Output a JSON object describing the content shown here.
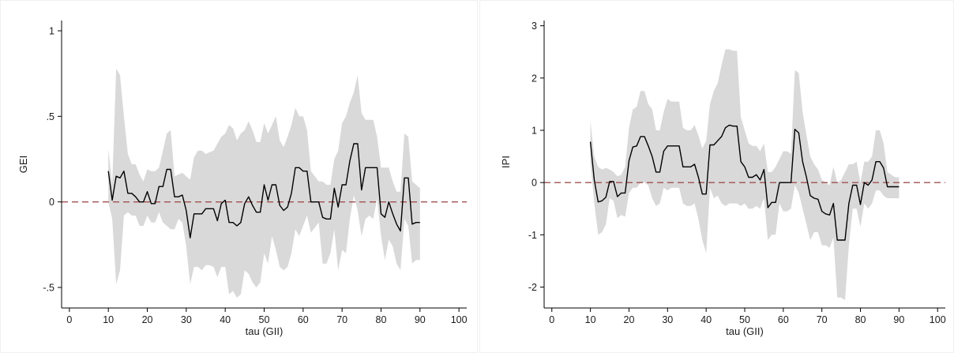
{
  "chart_data": [
    {
      "type": "line",
      "xlabel": "tau (GII)",
      "ylabel": "GEI",
      "xlim": [
        -2,
        102
      ],
      "ylim": [
        -0.62,
        1.06
      ],
      "xticks": [
        0,
        10,
        20,
        30,
        40,
        50,
        60,
        70,
        80,
        90,
        100
      ],
      "xtick_labels": [
        "0",
        "10",
        "20",
        "30",
        "40",
        "50",
        "60",
        "70",
        "80",
        "90",
        "100"
      ],
      "yticks": [
        -0.5,
        0,
        0.5,
        1
      ],
      "ytick_labels": [
        "-.5",
        "0",
        ".5",
        "1"
      ],
      "reference_line": {
        "y": 0,
        "style": "dashed",
        "color": "#a05050"
      },
      "band_color": "#d9d9d9",
      "line_color": "#000000",
      "grid": false,
      "series": [
        {
          "role": "estimate",
          "x": [
            10,
            11,
            12,
            13,
            14,
            15,
            16,
            17,
            18,
            19,
            20,
            21,
            22,
            23,
            24,
            25,
            26,
            27,
            28,
            29,
            30,
            31,
            32,
            33,
            34,
            35,
            36,
            37,
            38,
            39,
            40,
            41,
            42,
            43,
            44,
            45,
            46,
            47,
            48,
            49,
            50,
            51,
            52,
            53,
            54,
            55,
            56,
            57,
            58,
            59,
            60,
            61,
            62,
            63,
            64,
            65,
            66,
            67,
            68,
            69,
            70,
            71,
            72,
            73,
            74,
            75,
            76,
            77,
            78,
            79,
            80,
            81,
            82,
            83,
            84,
            85,
            86,
            87,
            88,
            89,
            90
          ],
          "y": [
            0.18,
            0.01,
            0.15,
            0.14,
            0.18,
            0.05,
            0.05,
            0.03,
            0.0,
            0.0,
            0.06,
            -0.01,
            -0.01,
            0.09,
            0.09,
            0.19,
            0.19,
            0.03,
            0.03,
            0.04,
            -0.05,
            -0.21,
            -0.07,
            -0.07,
            -0.07,
            -0.04,
            -0.04,
            -0.04,
            -0.11,
            -0.01,
            0.01,
            -0.12,
            -0.12,
            -0.14,
            -0.12,
            -0.01,
            0.03,
            -0.02,
            -0.06,
            -0.06,
            0.1,
            0.01,
            0.1,
            0.1,
            -0.02,
            -0.05,
            -0.03,
            0.05,
            0.2,
            0.2,
            0.18,
            0.18,
            0.0,
            0.0,
            0.0,
            -0.09,
            -0.1,
            -0.1,
            0.08,
            -0.03,
            0.1,
            0.1,
            0.24,
            0.34,
            0.34,
            0.07,
            0.2,
            0.2,
            0.2,
            0.2,
            -0.07,
            -0.09,
            0.0,
            -0.07,
            -0.13,
            -0.17,
            0.14,
            0.14,
            -0.13,
            -0.12,
            -0.12
          ]
        },
        {
          "role": "ci_upper",
          "x": [
            10,
            11,
            12,
            13,
            14,
            15,
            16,
            17,
            18,
            19,
            20,
            21,
            22,
            23,
            24,
            25,
            26,
            27,
            28,
            29,
            30,
            31,
            32,
            33,
            34,
            35,
            36,
            37,
            38,
            39,
            40,
            41,
            42,
            43,
            44,
            45,
            46,
            47,
            48,
            49,
            50,
            51,
            52,
            53,
            54,
            55,
            56,
            57,
            58,
            59,
            60,
            61,
            62,
            63,
            64,
            65,
            66,
            67,
            68,
            69,
            70,
            71,
            72,
            73,
            74,
            75,
            76,
            77,
            78,
            79,
            80,
            81,
            82,
            83,
            84,
            85,
            86,
            87,
            88,
            89,
            90
          ],
          "y": [
            0.31,
            0.1,
            0.78,
            0.74,
            0.5,
            0.28,
            0.22,
            0.22,
            0.16,
            0.12,
            0.19,
            0.18,
            0.18,
            0.2,
            0.3,
            0.4,
            0.42,
            0.15,
            0.16,
            0.17,
            0.15,
            0.13,
            0.26,
            0.3,
            0.3,
            0.28,
            0.29,
            0.3,
            0.34,
            0.38,
            0.4,
            0.45,
            0.43,
            0.36,
            0.4,
            0.42,
            0.47,
            0.42,
            0.35,
            0.35,
            0.46,
            0.4,
            0.45,
            0.5,
            0.36,
            0.32,
            0.38,
            0.45,
            0.55,
            0.5,
            0.5,
            0.42,
            0.18,
            0.15,
            0.12,
            0.12,
            0.1,
            0.1,
            0.25,
            0.3,
            0.46,
            0.5,
            0.58,
            0.64,
            0.74,
            0.52,
            0.48,
            0.48,
            0.48,
            0.38,
            0.2,
            0.2,
            0.2,
            0.12,
            0.06,
            0.06,
            0.4,
            0.38,
            0.12,
            0.1,
            0.08
          ]
        },
        {
          "role": "ci_lower",
          "x": [
            10,
            11,
            12,
            13,
            14,
            15,
            16,
            17,
            18,
            19,
            20,
            21,
            22,
            23,
            24,
            25,
            26,
            27,
            28,
            29,
            30,
            31,
            32,
            33,
            34,
            35,
            36,
            37,
            38,
            39,
            40,
            41,
            42,
            43,
            44,
            45,
            46,
            47,
            48,
            49,
            50,
            51,
            52,
            53,
            54,
            55,
            56,
            57,
            58,
            59,
            60,
            61,
            62,
            63,
            64,
            65,
            66,
            67,
            68,
            69,
            70,
            71,
            72,
            73,
            74,
            75,
            76,
            77,
            78,
            79,
            80,
            81,
            82,
            83,
            84,
            85,
            86,
            87,
            88,
            89,
            90
          ],
          "y": [
            0.0,
            -0.1,
            -0.48,
            -0.4,
            -0.08,
            -0.06,
            -0.08,
            -0.08,
            -0.14,
            -0.14,
            -0.08,
            -0.12,
            -0.12,
            -0.06,
            -0.12,
            -0.14,
            -0.16,
            -0.16,
            -0.1,
            -0.12,
            -0.26,
            -0.48,
            -0.38,
            -0.38,
            -0.4,
            -0.37,
            -0.37,
            -0.38,
            -0.44,
            -0.38,
            -0.38,
            -0.54,
            -0.52,
            -0.56,
            -0.54,
            -0.4,
            -0.42,
            -0.47,
            -0.5,
            -0.47,
            -0.3,
            -0.36,
            -0.2,
            -0.28,
            -0.38,
            -0.4,
            -0.38,
            -0.3,
            -0.16,
            -0.2,
            -0.14,
            -0.08,
            -0.18,
            -0.15,
            -0.12,
            -0.36,
            -0.36,
            -0.3,
            -0.16,
            -0.4,
            -0.28,
            -0.3,
            -0.1,
            0.04,
            -0.05,
            -0.2,
            -0.1,
            -0.08,
            -0.1,
            0.02,
            -0.2,
            -0.34,
            -0.22,
            -0.26,
            -0.36,
            -0.4,
            -0.1,
            -0.14,
            -0.36,
            -0.34,
            -0.34
          ]
        }
      ]
    },
    {
      "type": "line",
      "xlabel": "tau (GII)",
      "ylabel": "IPI",
      "xlim": [
        -2,
        102
      ],
      "ylim": [
        -2.4,
        3.1
      ],
      "xticks": [
        0,
        10,
        20,
        30,
        40,
        50,
        60,
        70,
        80,
        90,
        100
      ],
      "xtick_labels": [
        "0",
        "10",
        "20",
        "30",
        "40",
        "50",
        "60",
        "70",
        "80",
        "90",
        "100"
      ],
      "yticks": [
        -2,
        -1,
        0,
        1,
        2,
        3
      ],
      "ytick_labels": [
        "-2",
        "-1",
        "0",
        "1",
        "2",
        "3"
      ],
      "reference_line": {
        "y": 0,
        "style": "dashed",
        "color": "#a05050"
      },
      "band_color": "#d9d9d9",
      "line_color": "#000000",
      "grid": false,
      "series": [
        {
          "role": "estimate",
          "x": [
            10,
            11,
            12,
            13,
            14,
            15,
            16,
            17,
            18,
            19,
            20,
            21,
            22,
            23,
            24,
            25,
            26,
            27,
            28,
            29,
            30,
            31,
            32,
            33,
            34,
            35,
            36,
            37,
            38,
            39,
            40,
            41,
            42,
            43,
            44,
            45,
            46,
            47,
            48,
            49,
            50,
            51,
            52,
            53,
            54,
            55,
            56,
            57,
            58,
            59,
            60,
            61,
            62,
            63,
            64,
            65,
            66,
            67,
            68,
            69,
            70,
            71,
            72,
            73,
            74,
            75,
            76,
            77,
            78,
            79,
            80,
            81,
            82,
            83,
            84,
            85,
            86,
            87,
            88,
            89,
            90
          ],
          "y": [
            0.78,
            0.05,
            -0.37,
            -0.35,
            -0.28,
            0.02,
            0.02,
            -0.27,
            -0.2,
            -0.2,
            0.42,
            0.68,
            0.7,
            0.88,
            0.88,
            0.7,
            0.5,
            0.2,
            0.2,
            0.6,
            0.7,
            0.7,
            0.7,
            0.7,
            0.3,
            0.3,
            0.3,
            0.35,
            0.1,
            -0.22,
            -0.22,
            0.72,
            0.72,
            0.8,
            0.88,
            1.05,
            1.1,
            1.08,
            1.08,
            0.4,
            0.3,
            0.1,
            0.1,
            0.15,
            0.05,
            0.25,
            -0.48,
            -0.38,
            -0.38,
            0.0,
            0.0,
            0.0,
            0.0,
            1.02,
            0.95,
            0.4,
            0.1,
            -0.25,
            -0.3,
            -0.32,
            -0.55,
            -0.6,
            -0.62,
            -0.4,
            -1.1,
            -1.1,
            -1.1,
            -0.4,
            -0.05,
            -0.05,
            -0.42,
            0.0,
            -0.05,
            0.05,
            0.4,
            0.4,
            0.28,
            -0.08,
            -0.08,
            -0.08,
            -0.08
          ]
        },
        {
          "role": "ci_upper",
          "x": [
            10,
            11,
            12,
            13,
            14,
            15,
            16,
            17,
            18,
            19,
            20,
            21,
            22,
            23,
            24,
            25,
            26,
            27,
            28,
            29,
            30,
            31,
            32,
            33,
            34,
            35,
            36,
            37,
            38,
            39,
            40,
            41,
            42,
            43,
            44,
            45,
            46,
            47,
            48,
            49,
            50,
            51,
            52,
            53,
            54,
            55,
            56,
            57,
            58,
            59,
            60,
            61,
            62,
            63,
            64,
            65,
            66,
            67,
            68,
            69,
            70,
            71,
            72,
            73,
            74,
            75,
            76,
            77,
            78,
            79,
            80,
            81,
            82,
            83,
            84,
            85,
            86,
            87,
            88,
            89,
            90
          ],
          "y": [
            1.18,
            0.5,
            0.3,
            0.25,
            0.28,
            0.25,
            0.2,
            0.12,
            0.15,
            0.3,
            1.05,
            1.4,
            1.45,
            1.75,
            1.75,
            1.5,
            1.4,
            1.0,
            1.0,
            1.35,
            1.6,
            1.55,
            1.55,
            1.55,
            1.05,
            1.0,
            1.0,
            1.1,
            0.9,
            0.65,
            0.8,
            1.5,
            1.75,
            1.9,
            2.25,
            2.55,
            2.55,
            2.52,
            2.52,
            1.25,
            1.0,
            0.75,
            0.7,
            0.7,
            0.6,
            0.75,
            0.2,
            0.2,
            0.3,
            0.45,
            0.6,
            0.6,
            0.55,
            2.15,
            2.1,
            1.35,
            0.9,
            0.5,
            0.35,
            0.25,
            0.05,
            0.0,
            -0.05,
            0.3,
            0.0,
            0.05,
            0.2,
            0.35,
            0.35,
            0.4,
            0.0,
            0.4,
            0.4,
            0.5,
            1.0,
            1.0,
            0.75,
            0.2,
            0.15,
            0.1,
            0.1
          ]
        },
        {
          "role": "ci_lower",
          "x": [
            10,
            11,
            12,
            13,
            14,
            15,
            16,
            17,
            18,
            19,
            20,
            21,
            22,
            23,
            24,
            25,
            26,
            27,
            28,
            29,
            30,
            31,
            32,
            33,
            34,
            35,
            36,
            37,
            38,
            39,
            40,
            41,
            42,
            43,
            44,
            45,
            46,
            47,
            48,
            49,
            50,
            51,
            52,
            53,
            54,
            55,
            56,
            57,
            58,
            59,
            60,
            61,
            62,
            63,
            64,
            65,
            66,
            67,
            68,
            69,
            70,
            71,
            72,
            73,
            74,
            75,
            76,
            77,
            78,
            79,
            80,
            81,
            82,
            83,
            84,
            85,
            86,
            87,
            88,
            89,
            90
          ],
          "y": [
            0.4,
            -0.4,
            -1.0,
            -0.95,
            -0.8,
            -0.3,
            -0.35,
            -0.68,
            -0.62,
            -0.65,
            -0.2,
            -0.1,
            -0.1,
            0.0,
            0.0,
            -0.05,
            -0.3,
            -0.45,
            -0.4,
            -0.1,
            -0.15,
            -0.1,
            -0.1,
            -0.1,
            -0.4,
            -0.45,
            -0.45,
            -0.4,
            -0.7,
            -1.1,
            -1.35,
            -0.1,
            -0.3,
            -0.25,
            -0.4,
            -0.45,
            -0.4,
            -0.4,
            -0.4,
            -0.45,
            -0.4,
            -0.5,
            -0.5,
            -0.45,
            -0.5,
            -0.3,
            -1.1,
            -1.0,
            -1.0,
            -0.4,
            -0.55,
            -0.55,
            -0.5,
            -0.05,
            -0.2,
            -0.5,
            -0.8,
            -1.1,
            -0.95,
            -0.95,
            -1.2,
            -1.2,
            -1.25,
            -1.05,
            -2.2,
            -2.2,
            -2.25,
            -1.2,
            -0.5,
            -0.5,
            -0.85,
            -0.4,
            -0.5,
            -0.4,
            -0.15,
            -0.15,
            -0.25,
            -0.3,
            -0.3,
            -0.3,
            -0.3
          ]
        }
      ]
    }
  ]
}
